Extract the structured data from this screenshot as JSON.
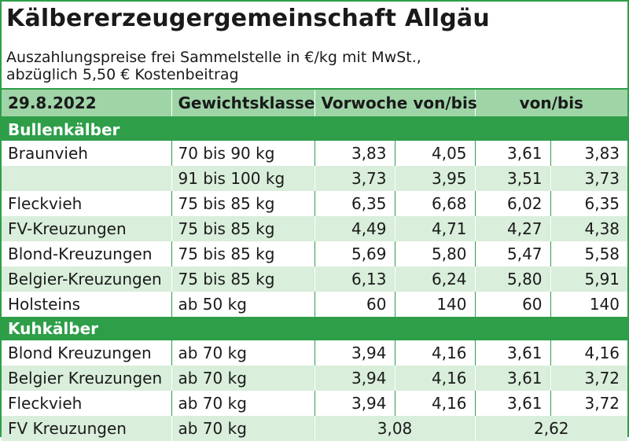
{
  "title": "Kälbererzeugergemeinschaft Allgäu",
  "subtitle_line1": "Auszahlungspreise frei Sammelstelle in €/kg mit MwSt.,",
  "subtitle_line2": "abzüglich 5,50 € Kostenbeitrag",
  "header": {
    "date": "29.8.2022",
    "weight_class": "Gewichtsklasse",
    "prev_week": "Vorwoche von/bis",
    "current": "von/bis"
  },
  "sections": [
    {
      "name": "Bullenkälber",
      "rows": [
        {
          "breed": "Braunvieh",
          "weight": "70 bis 90 kg",
          "pv_from": "3,83",
          "pv_to": "4,05",
          "from": "3,61",
          "to": "3,83"
        },
        {
          "breed": "",
          "weight": "91 bis 100 kg",
          "pv_from": "3,73",
          "pv_to": "3,95",
          "from": "3,51",
          "to": "3,73"
        },
        {
          "breed": "Fleckvieh",
          "weight": "75 bis 85 kg",
          "pv_from": "6,35",
          "pv_to": "6,68",
          "from": "6,02",
          "to": "6,35"
        },
        {
          "breed": "FV-Kreuzungen",
          "weight": "75 bis 85 kg",
          "pv_from": "4,49",
          "pv_to": "4,71",
          "from": "4,27",
          "to": "4,38"
        },
        {
          "breed": "Blond-Kreuzungen",
          "weight": "75 bis 85 kg",
          "pv_from": "5,69",
          "pv_to": "5,80",
          "from": "5,47",
          "to": "5,58"
        },
        {
          "breed": "Belgier-Kreuzungen",
          "weight": "75 bis 85 kg",
          "pv_from": "6,13",
          "pv_to": "6,24",
          "from": "5,80",
          "to": "5,91"
        },
        {
          "breed": "Holsteins",
          "weight": "ab 50 kg",
          "pv_from": "60",
          "pv_to": "140",
          "from": "60",
          "to": "140"
        }
      ]
    },
    {
      "name": "Kuhkälber",
      "rows": [
        {
          "breed": "Blond Kreuzungen",
          "weight": "ab 70 kg",
          "pv_from": "3,94",
          "pv_to": "4,16",
          "from": "3,61",
          "to": "4,16"
        },
        {
          "breed": "Belgier Kreuzungen",
          "weight": "ab 70 kg",
          "pv_from": "3,94",
          "pv_to": "4,16",
          "from": "3,61",
          "to": "3,72"
        },
        {
          "breed": "Fleckvieh",
          "weight": "ab 70 kg",
          "pv_from": "3,94",
          "pv_to": "4,16",
          "from": "3,61",
          "to": "3,72"
        },
        {
          "breed": "FV Kreuzungen",
          "weight": "ab 70 kg",
          "pv_single": "3,08",
          "single": "2,62"
        }
      ]
    }
  ],
  "colors": {
    "section_green": "#2e9e49",
    "header_green": "#9fd4a7",
    "row_alt": "#d9eedb"
  }
}
